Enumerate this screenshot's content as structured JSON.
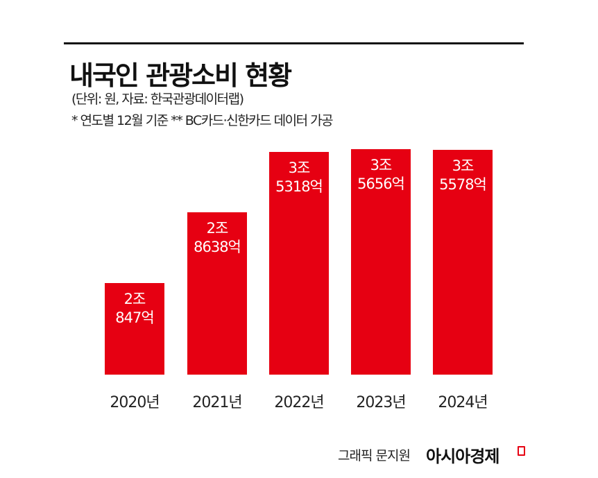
{
  "header": {
    "title": "내국인 관광소비 현황",
    "unit_source": "(단위: 원, 자료: 한국관광데이터랩)",
    "notes": "* 연도별 12월 기준  ** BC카드·신한카드 데이터 가공"
  },
  "chart_data": {
    "type": "bar",
    "title": "내국인 관광소비 현황",
    "categories": [
      "2020년",
      "2021년",
      "2022년",
      "2023년",
      "2024년"
    ],
    "values": [
      20847,
      28638,
      35318,
      35656,
      35578
    ],
    "value_unit": "억원",
    "data_labels": [
      [
        "2조",
        "847억"
      ],
      [
        "2조",
        "8638억"
      ],
      [
        "3조",
        "5318억"
      ],
      [
        "3조",
        "5656억"
      ],
      [
        "3조",
        "5578억"
      ]
    ],
    "xlabel": "",
    "ylabel": "",
    "grid": false,
    "legend": "none",
    "bar_color": "#e60012"
  },
  "footer": {
    "credit": "그래픽 문지원",
    "logo": "아시아경제"
  }
}
